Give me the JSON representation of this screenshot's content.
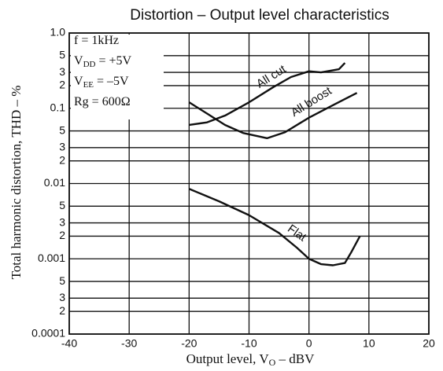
{
  "chart_data": {
    "type": "line",
    "title": "Distortion – Output level characteristics",
    "x_label": {
      "main": "Output level, V",
      "sub": "O",
      "after": " – dBV"
    },
    "y_label": "Total harmonic distortion, THD – %",
    "conditions": [
      {
        "main": "f = 1kHz",
        "sub": "",
        "after": ""
      },
      {
        "main": "V",
        "sub": "DD",
        "after": " = +5V"
      },
      {
        "main": "V",
        "sub": "EE",
        "after": " = –5V"
      },
      {
        "main": "Rg = 600Ω",
        "sub": "",
        "after": ""
      }
    ],
    "log_y": true,
    "grid": true,
    "color": "#111111",
    "xlim": [
      -40,
      20
    ],
    "xticks": [
      -40,
      -30,
      -20,
      -10,
      0,
      10,
      20
    ],
    "ylim": [
      0.0001,
      1
    ],
    "yticks": [
      {
        "value": 1,
        "label": "1.0"
      },
      {
        "value": 0.5,
        "label": "5"
      },
      {
        "value": 0.3,
        "label": "3"
      },
      {
        "value": 0.2,
        "label": "2"
      },
      0.1,
      {
        "value": 0.05,
        "label": "5"
      },
      {
        "value": 0.03,
        "label": "3"
      },
      {
        "value": 0.02,
        "label": "2"
      },
      0.01,
      {
        "value": 0.005,
        "label": "5"
      },
      {
        "value": 0.003,
        "label": "3"
      },
      {
        "value": 0.002,
        "label": "2"
      },
      0.001,
      {
        "value": 0.0005,
        "label": "5"
      },
      {
        "value": 0.0003,
        "label": "3"
      },
      {
        "value": 0.0002,
        "label": "2"
      },
      0.0001
    ],
    "series": [
      {
        "name": "All cut",
        "x": [
          -20,
          -17,
          -14,
          -10,
          -6,
          -3,
          0,
          2,
          4,
          5,
          6
        ],
        "values": [
          0.06,
          0.065,
          0.08,
          0.12,
          0.19,
          0.26,
          0.31,
          0.3,
          0.32,
          0.33,
          0.4
        ]
      },
      {
        "name": "All boost",
        "x": [
          -20,
          -17,
          -14,
          -11,
          -7,
          -4,
          0,
          4,
          8
        ],
        "values": [
          0.12,
          0.085,
          0.06,
          0.047,
          0.04,
          0.048,
          0.075,
          0.11,
          0.16
        ]
      },
      {
        "name": "Flat",
        "x": [
          -20,
          -15,
          -10,
          -5,
          -2,
          0,
          2,
          4,
          6,
          7,
          8.5
        ],
        "values": [
          0.0085,
          0.0058,
          0.0038,
          0.0022,
          0.0014,
          0.001,
          0.00085,
          0.00082,
          0.00088,
          0.0012,
          0.002
        ]
      }
    ]
  }
}
